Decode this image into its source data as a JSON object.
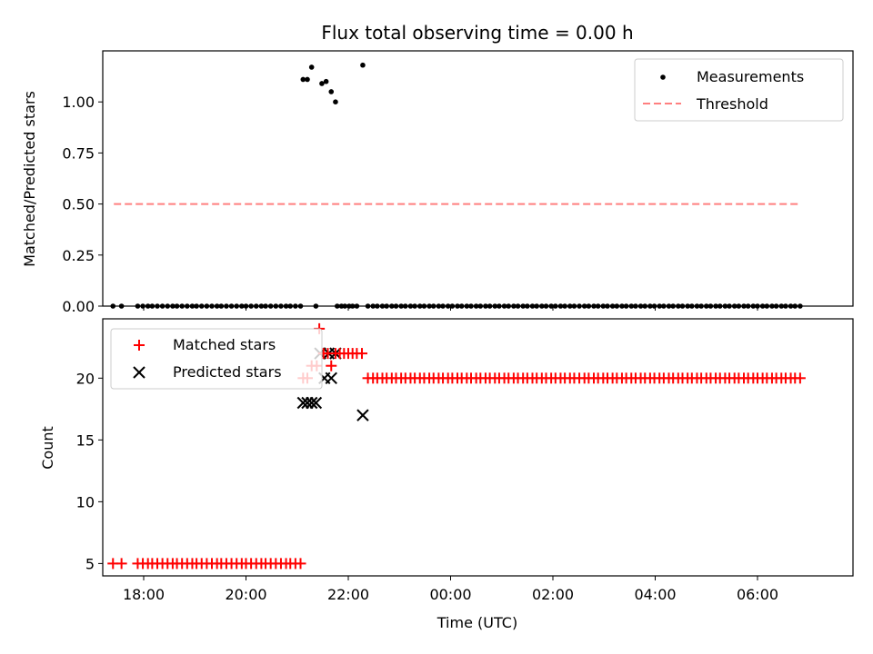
{
  "chart_data": {
    "title": "Flux total observing time = 0.00 h",
    "xlabel": "Time (UTC)",
    "x_ticks": [
      "18:00",
      "20:00",
      "22:00",
      "00:00",
      "02:00",
      "04:00",
      "06:00"
    ],
    "x_range": [
      "17:12",
      "07:52"
    ],
    "panels": [
      {
        "type": "scatter",
        "ylabel": "Matched/Predicted stars",
        "ylim": [
          0,
          1.25
        ],
        "y_ticks": [
          0.0,
          0.25,
          0.5,
          0.75,
          1.0
        ],
        "y_tick_labels": [
          "0.00",
          "0.25",
          "0.50",
          "0.75",
          "1.00"
        ],
        "legend": {
          "position": "upper right",
          "entries": [
            "Measurements",
            "Threshold"
          ]
        },
        "threshold": {
          "name": "Threshold",
          "y": 0.5,
          "x_start": "17:25",
          "x_end": "06:50",
          "color": "#ff7f7f",
          "style": "dashed"
        },
        "series": [
          {
            "name": "Measurements",
            "marker": "dot",
            "color": "#000000",
            "points": [
              [
                "21:07",
                1.11
              ],
              [
                "21:12",
                1.11
              ],
              [
                "21:17",
                1.17
              ],
              [
                "21:29",
                1.09
              ],
              [
                "21:34",
                1.1
              ],
              [
                "21:40",
                1.05
              ],
              [
                "21:45",
                1.0
              ],
              [
                "22:17",
                1.18
              ]
            ],
            "zero_runs": [
              [
                "17:24",
                "17:34",
                2
              ],
              [
                "17:53",
                "21:04",
                34
              ],
              [
                "21:22",
                "21:22",
                1
              ],
              [
                "21:47",
                "22:10",
                6
              ],
              [
                "22:23",
                "06:50",
                93
              ]
            ]
          }
        ]
      },
      {
        "type": "scatter",
        "ylabel": "Count",
        "ylim": [
          4,
          24.8
        ],
        "y_ticks": [
          5,
          10,
          15,
          20
        ],
        "y_tick_labels": [
          "5",
          "10",
          "15",
          "20"
        ],
        "legend": {
          "position": "upper left",
          "entries": [
            "Matched stars",
            "Predicted stars"
          ]
        },
        "series": [
          {
            "name": "Matched stars",
            "marker": "plus",
            "color": "#ff0000",
            "runs": [
              [
                "17:24",
                "17:34",
                5,
                2
              ],
              [
                "17:53",
                "21:04",
                5,
                34
              ],
              [
                "22:23",
                "06:50",
                20,
                93
              ]
            ],
            "points": [
              [
                "21:07",
                20
              ],
              [
                "21:12",
                20
              ],
              [
                "21:17",
                21
              ],
              [
                "21:23",
                21
              ],
              [
                "21:26",
                24
              ],
              [
                "21:31",
                22
              ],
              [
                "21:36",
                22
              ],
              [
                "21:40",
                21
              ],
              [
                "21:45",
                22
              ],
              [
                "21:50",
                22
              ],
              [
                "21:55",
                22
              ],
              [
                "22:00",
                22
              ],
              [
                "22:05",
                22
              ],
              [
                "22:10",
                22
              ],
              [
                "22:16",
                22
              ]
            ]
          },
          {
            "name": "Predicted stars",
            "marker": "x",
            "color": "#000000",
            "points": [
              [
                "21:07",
                18
              ],
              [
                "21:12",
                18
              ],
              [
                "21:17",
                18
              ],
              [
                "21:22",
                18
              ],
              [
                "21:27",
                22
              ],
              [
                "21:32",
                20
              ],
              [
                "21:37",
                22
              ],
              [
                "21:40",
                20
              ],
              [
                "21:45",
                22
              ],
              [
                "22:17",
                17
              ]
            ]
          }
        ]
      }
    ]
  }
}
